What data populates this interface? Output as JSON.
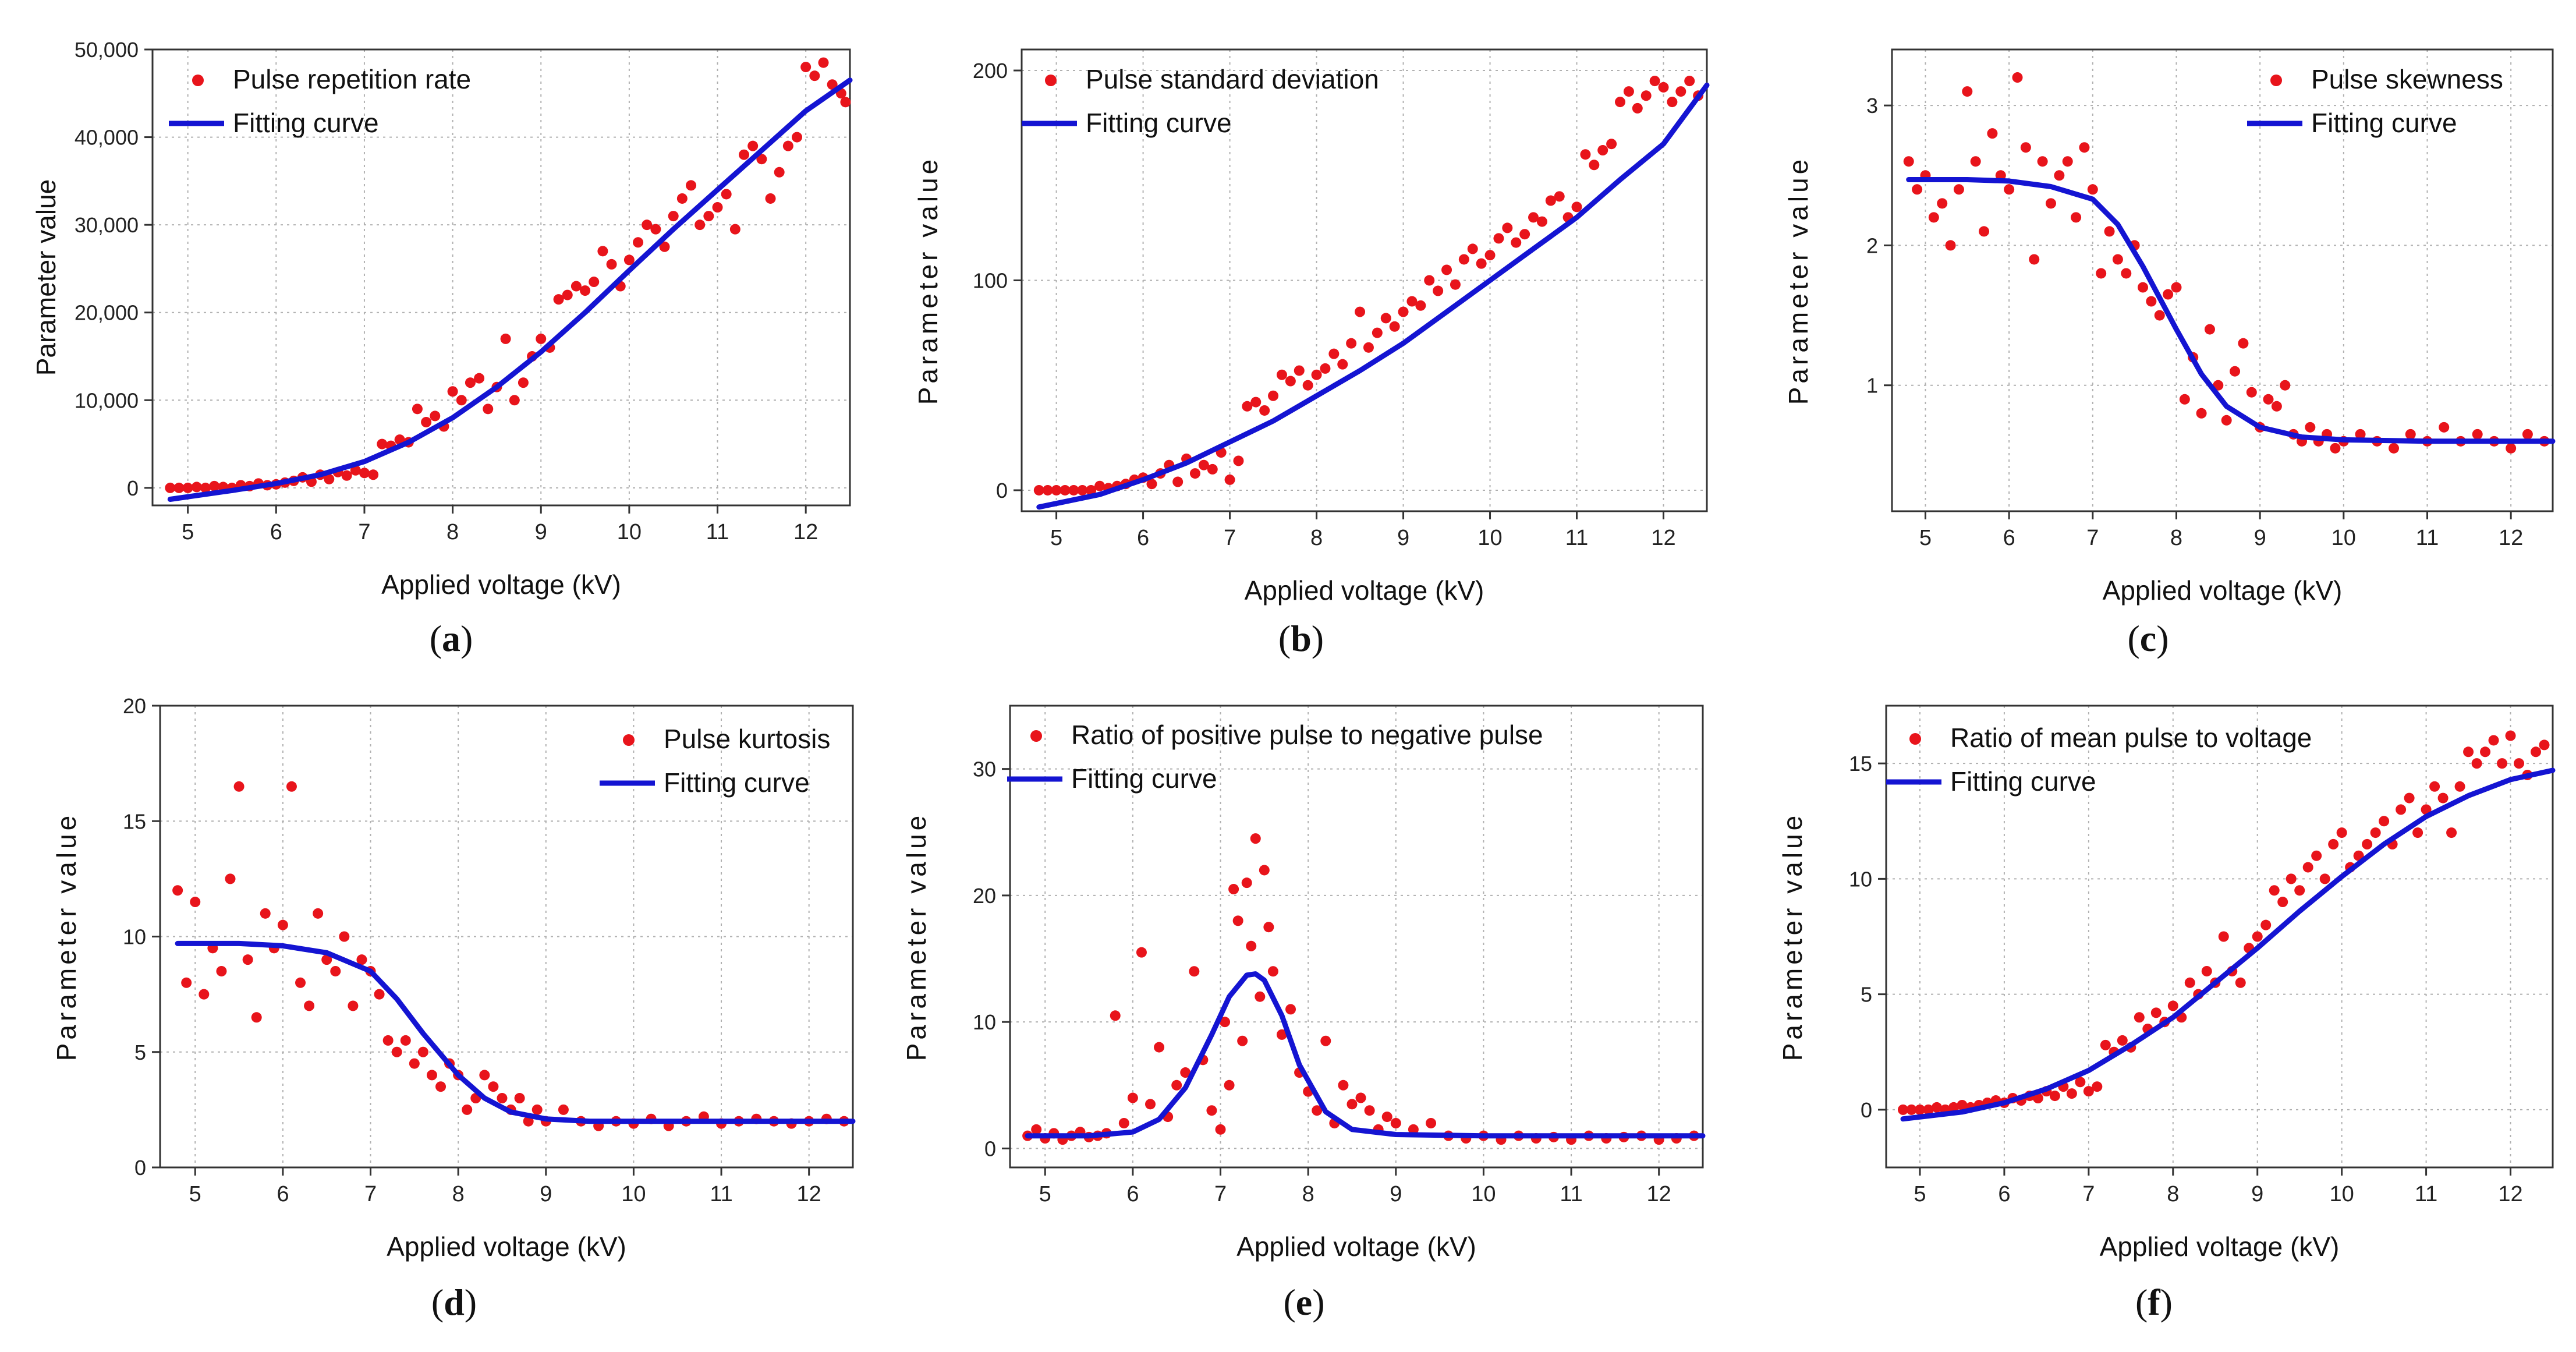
{
  "figure": {
    "shared": {
      "xlabel": "Applied voltage (kV)",
      "ylabel": "Parameter value",
      "fit_label": "Fitting curve",
      "x_ticks": [
        5,
        6,
        7,
        8,
        9,
        10,
        11,
        12
      ],
      "xlim": [
        4.6,
        12.5
      ],
      "point_color": "#e8141b",
      "curve_color": "#1414d2",
      "grid": "dotted"
    },
    "subplots": [
      {
        "label": "a",
        "legend_pos": "top-left"
      },
      {
        "label": "b",
        "legend_pos": "top-left"
      },
      {
        "label": "c",
        "legend_pos": "top-right"
      },
      {
        "label": "d",
        "legend_pos": "top-right"
      },
      {
        "label": "e",
        "legend_pos": "top-left"
      },
      {
        "label": "f",
        "legend_pos": "top-left"
      }
    ]
  },
  "chart_data": [
    {
      "panel": "a",
      "type": "scatter",
      "title": "",
      "xlabel": "Applied voltage (kV)",
      "ylabel": "Parameter value",
      "series_name": "Pulse repetition rate",
      "fit_name": "Fitting curve",
      "ylim": [
        -2000,
        50000
      ],
      "y_ticks": [
        0,
        10000,
        20000,
        30000,
        40000,
        50000
      ],
      "y_tick_labels": [
        "0",
        "10,000",
        "20,000",
        "30,000",
        "40,000",
        "50,000"
      ],
      "fit": {
        "x": [
          4.8,
          5.5,
          6,
          6.5,
          7,
          7.5,
          8,
          8.5,
          9,
          9.5,
          10,
          10.5,
          11,
          11.5,
          12,
          12.5
        ],
        "y": [
          -1300,
          -300,
          500,
          1500,
          3000,
          5200,
          8000,
          11500,
          15500,
          20000,
          24800,
          29500,
          34000,
          38500,
          43000,
          46500
        ]
      },
      "x": [
        4.8,
        4.9,
        5.0,
        5.1,
        5.2,
        5.3,
        5.4,
        5.5,
        5.6,
        5.7,
        5.8,
        5.9,
        6.0,
        6.1,
        6.2,
        6.3,
        6.4,
        6.5,
        6.6,
        6.7,
        6.8,
        6.9,
        7.0,
        7.1,
        7.2,
        7.3,
        7.4,
        7.5,
        7.6,
        7.7,
        7.8,
        7.9,
        8.0,
        8.1,
        8.2,
        8.3,
        8.4,
        8.5,
        8.6,
        8.7,
        8.8,
        8.9,
        9.0,
        9.1,
        9.2,
        9.3,
        9.4,
        9.5,
        9.6,
        9.7,
        9.8,
        9.9,
        10.0,
        10.1,
        10.2,
        10.3,
        10.4,
        10.5,
        10.6,
        10.7,
        10.8,
        10.9,
        11.0,
        11.1,
        11.2,
        11.3,
        11.4,
        11.5,
        11.6,
        11.7,
        11.8,
        11.9,
        12.0,
        12.1,
        12.2,
        12.3,
        12.4,
        12.45
      ],
      "y": [
        0,
        0,
        0,
        100,
        0,
        200,
        100,
        0,
        300,
        200,
        500,
        300,
        400,
        600,
        800,
        1200,
        700,
        1500,
        1000,
        1800,
        1400,
        2000,
        1700,
        1500,
        5000,
        4800,
        5500,
        5200,
        9000,
        7500,
        8200,
        7000,
        11000,
        10000,
        12000,
        12500,
        9000,
        11500,
        17000,
        10000,
        12000,
        15000,
        17000,
        16000,
        21500,
        22000,
        23000,
        22500,
        23500,
        27000,
        25500,
        23000,
        26000,
        28000,
        30000,
        29500,
        27500,
        31000,
        33000,
        34500,
        30000,
        31000,
        32000,
        33500,
        29500,
        38000,
        39000,
        37500,
        33000,
        36000,
        39000,
        40000,
        48000,
        47000,
        48500,
        46000,
        45000,
        44000
      ]
    },
    {
      "panel": "b",
      "type": "scatter",
      "title": "",
      "xlabel": "Applied voltage (kV)",
      "ylabel": "Parameter value",
      "series_name": "Pulse standard deviation",
      "fit_name": "Fitting curve",
      "ylim": [
        -10,
        210
      ],
      "y_ticks": [
        0,
        100,
        200
      ],
      "y_tick_labels": [
        "0",
        "100",
        "200"
      ],
      "fit": {
        "x": [
          4.8,
          5.5,
          6,
          6.5,
          7,
          7.5,
          8,
          8.5,
          9,
          9.5,
          10,
          10.5,
          11,
          11.5,
          12,
          12.5
        ],
        "y": [
          -8,
          -2,
          5,
          13,
          23,
          33,
          45,
          57,
          70,
          85,
          100,
          115,
          130,
          148,
          165,
          193
        ]
      },
      "x": [
        4.8,
        4.9,
        5.0,
        5.1,
        5.2,
        5.3,
        5.4,
        5.5,
        5.6,
        5.7,
        5.8,
        5.9,
        6.0,
        6.1,
        6.2,
        6.3,
        6.4,
        6.5,
        6.6,
        6.7,
        6.8,
        6.9,
        7.0,
        7.1,
        7.2,
        7.3,
        7.4,
        7.5,
        7.6,
        7.7,
        7.8,
        7.9,
        8.0,
        8.1,
        8.2,
        8.3,
        8.4,
        8.5,
        8.6,
        8.7,
        8.8,
        8.9,
        9.0,
        9.1,
        9.2,
        9.3,
        9.4,
        9.5,
        9.6,
        9.7,
        9.8,
        9.9,
        10.0,
        10.1,
        10.2,
        10.3,
        10.4,
        10.5,
        10.6,
        10.7,
        10.8,
        10.9,
        11.0,
        11.1,
        11.2,
        11.3,
        11.4,
        11.5,
        11.6,
        11.7,
        11.8,
        11.9,
        12.0,
        12.1,
        12.2,
        12.3,
        12.4
      ],
      "y": [
        0,
        0,
        0,
        0,
        0,
        0,
        0,
        2,
        1,
        2,
        3,
        5,
        6,
        3,
        8,
        12,
        4,
        15,
        8,
        12,
        10,
        18,
        5,
        14,
        40,
        42,
        38,
        45,
        55,
        52,
        57,
        50,
        55,
        58,
        65,
        60,
        70,
        85,
        68,
        75,
        82,
        78,
        85,
        90,
        88,
        100,
        95,
        105,
        98,
        110,
        115,
        108,
        112,
        120,
        125,
        118,
        122,
        130,
        128,
        138,
        140,
        130,
        135,
        160,
        155,
        162,
        165,
        185,
        190,
        182,
        188,
        195,
        192,
        185,
        190,
        195,
        188
      ]
    },
    {
      "panel": "c",
      "type": "scatter",
      "title": "",
      "xlabel": "Applied voltage (kV)",
      "ylabel": "Parameter value",
      "series_name": "Pulse skewness",
      "fit_name": "Fitting curve",
      "ylim": [
        0.1,
        3.4
      ],
      "y_ticks": [
        1,
        2,
        3
      ],
      "y_tick_labels": [
        "1",
        "2",
        "3"
      ],
      "fit": {
        "x": [
          4.8,
          5.5,
          6,
          6.5,
          7,
          7.3,
          7.6,
          8,
          8.3,
          8.6,
          9,
          9.5,
          10,
          11,
          12,
          12.5
        ],
        "y": [
          2.47,
          2.47,
          2.46,
          2.42,
          2.33,
          2.15,
          1.85,
          1.4,
          1.08,
          0.85,
          0.7,
          0.63,
          0.61,
          0.6,
          0.6,
          0.6
        ]
      },
      "x": [
        4.8,
        4.9,
        5.0,
        5.1,
        5.2,
        5.3,
        5.4,
        5.5,
        5.6,
        5.7,
        5.8,
        5.9,
        6.0,
        6.1,
        6.2,
        6.3,
        6.4,
        6.5,
        6.6,
        6.7,
        6.8,
        6.9,
        7.0,
        7.1,
        7.2,
        7.3,
        7.4,
        7.5,
        7.6,
        7.7,
        7.8,
        7.9,
        8.0,
        8.1,
        8.2,
        8.3,
        8.4,
        8.5,
        8.6,
        8.7,
        8.8,
        8.9,
        9.0,
        9.1,
        9.2,
        9.3,
        9.4,
        9.5,
        9.6,
        9.7,
        9.8,
        9.9,
        10.0,
        10.2,
        10.4,
        10.6,
        10.8,
        11.0,
        11.2,
        11.4,
        11.6,
        11.8,
        12.0,
        12.2,
        12.4
      ],
      "y": [
        2.6,
        2.4,
        2.5,
        2.2,
        2.3,
        2.0,
        2.4,
        3.1,
        2.6,
        2.1,
        2.8,
        2.5,
        2.4,
        3.2,
        2.7,
        1.9,
        2.6,
        2.3,
        2.5,
        2.6,
        2.2,
        2.7,
        2.4,
        1.8,
        2.1,
        1.9,
        1.8,
        2.0,
        1.7,
        1.6,
        1.5,
        1.65,
        1.7,
        0.9,
        1.2,
        0.8,
        1.4,
        1.0,
        0.75,
        1.1,
        1.3,
        0.95,
        0.7,
        0.9,
        0.85,
        1.0,
        0.65,
        0.6,
        0.7,
        0.6,
        0.65,
        0.55,
        0.6,
        0.65,
        0.6,
        0.55,
        0.65,
        0.6,
        0.7,
        0.6,
        0.65,
        0.6,
        0.55,
        0.65,
        0.6
      ]
    },
    {
      "panel": "d",
      "type": "scatter",
      "title": "",
      "xlabel": "Applied voltage (kV)",
      "ylabel": "Parameter value",
      "series_name": "Pulse kurtosis",
      "fit_name": "Fitting curve",
      "ylim": [
        0,
        20
      ],
      "y_ticks": [
        0,
        5,
        10,
        15,
        20
      ],
      "y_tick_labels": [
        "0",
        "5",
        "10",
        "15",
        "20"
      ],
      "fit": {
        "x": [
          4.8,
          5.5,
          6,
          6.5,
          7,
          7.3,
          7.6,
          8,
          8.3,
          8.6,
          9,
          9.5,
          10,
          11,
          12,
          12.5
        ],
        "y": [
          9.7,
          9.7,
          9.6,
          9.3,
          8.5,
          7.3,
          5.8,
          4.0,
          3.0,
          2.4,
          2.1,
          2.0,
          2.0,
          2.0,
          2.0,
          2.0
        ]
      },
      "x": [
        4.8,
        4.9,
        5.0,
        5.1,
        5.2,
        5.3,
        5.4,
        5.5,
        5.6,
        5.7,
        5.8,
        5.9,
        6.0,
        6.1,
        6.2,
        6.3,
        6.4,
        6.5,
        6.6,
        6.7,
        6.8,
        6.9,
        7.0,
        7.1,
        7.2,
        7.3,
        7.4,
        7.5,
        7.6,
        7.7,
        7.8,
        7.9,
        8.0,
        8.1,
        8.2,
        8.3,
        8.4,
        8.5,
        8.6,
        8.7,
        8.8,
        8.9,
        9.0,
        9.2,
        9.4,
        9.6,
        9.8,
        10.0,
        10.2,
        10.4,
        10.6,
        10.8,
        11.0,
        11.2,
        11.4,
        11.6,
        11.8,
        12.0,
        12.2,
        12.4
      ],
      "y": [
        12.0,
        8.0,
        11.5,
        7.5,
        9.5,
        8.5,
        12.5,
        16.5,
        9.0,
        6.5,
        11.0,
        9.5,
        10.5,
        16.5,
        8.0,
        7.0,
        11.0,
        9.0,
        8.5,
        10.0,
        7.0,
        9.0,
        8.5,
        7.5,
        5.5,
        5.0,
        5.5,
        4.5,
        5.0,
        4.0,
        3.5,
        4.5,
        4.0,
        2.5,
        3.0,
        4.0,
        3.5,
        3.0,
        2.5,
        3.0,
        2.0,
        2.5,
        2.0,
        2.5,
        2.0,
        1.8,
        2.0,
        1.9,
        2.1,
        1.8,
        2.0,
        2.2,
        1.9,
        2.0,
        2.1,
        2.0,
        1.9,
        2.0,
        2.1,
        2.0
      ]
    },
    {
      "panel": "e",
      "type": "scatter",
      "title": "",
      "xlabel": "Applied voltage (kV)",
      "ylabel": "Parameter value",
      "series_name": "Ratio of positive pulse to negative pulse",
      "fit_name": "Fitting curve",
      "ylim": [
        -1.5,
        35
      ],
      "y_ticks": [
        0,
        10,
        20,
        30
      ],
      "y_tick_labels": [
        "0",
        "10",
        "20",
        "30"
      ],
      "fit": {
        "x": [
          4.8,
          5.5,
          6,
          6.3,
          6.6,
          6.9,
          7.1,
          7.3,
          7.4,
          7.5,
          7.7,
          7.9,
          8.2,
          8.5,
          9,
          10,
          11,
          12,
          12.5
        ],
        "y": [
          1.0,
          1.0,
          1.3,
          2.3,
          4.8,
          9.0,
          12.0,
          13.7,
          13.8,
          13.3,
          10.5,
          6.6,
          2.9,
          1.5,
          1.1,
          1.0,
          1.0,
          1.0,
          1.0
        ]
      },
      "x": [
        4.8,
        4.9,
        5.0,
        5.1,
        5.2,
        5.3,
        5.4,
        5.5,
        5.6,
        5.7,
        5.8,
        5.9,
        6.0,
        6.1,
        6.2,
        6.3,
        6.4,
        6.5,
        6.6,
        6.7,
        6.8,
        6.9,
        7.0,
        7.05,
        7.1,
        7.15,
        7.2,
        7.25,
        7.3,
        7.35,
        7.4,
        7.45,
        7.5,
        7.55,
        7.6,
        7.7,
        7.8,
        7.9,
        8.0,
        8.1,
        8.2,
        8.3,
        8.4,
        8.5,
        8.6,
        8.7,
        8.8,
        8.9,
        9.0,
        9.2,
        9.4,
        9.6,
        9.8,
        10.0,
        10.2,
        10.4,
        10.6,
        10.8,
        11.0,
        11.2,
        11.4,
        11.6,
        11.8,
        12.0,
        12.2,
        12.4
      ],
      "y": [
        1.0,
        1.5,
        0.8,
        1.2,
        0.7,
        1.0,
        1.3,
        0.9,
        1.0,
        1.2,
        10.5,
        2.0,
        4.0,
        15.5,
        3.5,
        8.0,
        2.5,
        5.0,
        6.0,
        14.0,
        7.0,
        3.0,
        1.5,
        10.0,
        5.0,
        20.5,
        18.0,
        8.5,
        21.0,
        16.0,
        24.5,
        12.0,
        22.0,
        17.5,
        14.0,
        9.0,
        11.0,
        6.0,
        4.5,
        3.0,
        8.5,
        2.0,
        5.0,
        3.5,
        4.0,
        3.0,
        1.5,
        2.5,
        2.0,
        1.5,
        2.0,
        1.0,
        0.8,
        1.0,
        0.7,
        1.0,
        0.8,
        0.9,
        0.7,
        1.0,
        0.8,
        0.9,
        1.0,
        0.7,
        0.8,
        1.0
      ]
    },
    {
      "panel": "f",
      "type": "scatter",
      "title": "",
      "xlabel": "Applied voltage (kV)",
      "ylabel": "Parameter value",
      "series_name": "Ratio of mean pulse to voltage",
      "fit_name": "Fitting curve",
      "ylim": [
        -2.5,
        17.5
      ],
      "y_ticks": [
        0,
        5,
        10,
        15
      ],
      "y_tick_labels": [
        "0",
        "5",
        "10",
        "15"
      ],
      "fit": {
        "x": [
          4.8,
          5.5,
          6,
          6.5,
          7,
          7.5,
          8,
          8.5,
          9,
          9.5,
          10,
          10.5,
          11,
          11.5,
          12,
          12.5
        ],
        "y": [
          -0.4,
          -0.1,
          0.3,
          0.9,
          1.7,
          2.8,
          4.0,
          5.5,
          7.0,
          8.6,
          10.1,
          11.5,
          12.7,
          13.6,
          14.3,
          14.7
        ]
      },
      "x": [
        4.8,
        4.9,
        5.0,
        5.1,
        5.2,
        5.3,
        5.4,
        5.5,
        5.6,
        5.7,
        5.8,
        5.9,
        6.0,
        6.1,
        6.2,
        6.3,
        6.4,
        6.5,
        6.6,
        6.7,
        6.8,
        6.9,
        7.0,
        7.1,
        7.2,
        7.3,
        7.4,
        7.5,
        7.6,
        7.7,
        7.8,
        7.9,
        8.0,
        8.1,
        8.2,
        8.3,
        8.4,
        8.5,
        8.6,
        8.7,
        8.8,
        8.9,
        9.0,
        9.1,
        9.2,
        9.3,
        9.4,
        9.5,
        9.6,
        9.7,
        9.8,
        9.9,
        10.0,
        10.1,
        10.2,
        10.3,
        10.4,
        10.5,
        10.6,
        10.7,
        10.8,
        10.9,
        11.0,
        11.1,
        11.2,
        11.3,
        11.4,
        11.5,
        11.6,
        11.7,
        11.8,
        11.9,
        12.0,
        12.1,
        12.2,
        12.3,
        12.4
      ],
      "y": [
        0,
        0,
        0,
        0,
        0.1,
        0,
        0.1,
        0.2,
        0.1,
        0.2,
        0.3,
        0.4,
        0.3,
        0.5,
        0.4,
        0.6,
        0.5,
        0.8,
        0.6,
        1.0,
        0.7,
        1.2,
        0.8,
        1.0,
        2.8,
        2.5,
        3.0,
        2.7,
        4.0,
        3.5,
        4.2,
        3.8,
        4.5,
        4.0,
        5.5,
        5.0,
        6.0,
        5.5,
        7.5,
        6.0,
        5.5,
        7.0,
        7.5,
        8.0,
        9.5,
        9.0,
        10.0,
        9.5,
        10.5,
        11.0,
        10.0,
        11.5,
        12.0,
        10.5,
        11.0,
        11.5,
        12.0,
        12.5,
        11.5,
        13.0,
        13.5,
        12.0,
        13.0,
        14.0,
        13.5,
        12.0,
        14.0,
        15.5,
        15.0,
        15.5,
        16.0,
        15.0,
        16.2,
        15.0,
        14.5,
        15.5,
        15.8
      ]
    }
  ]
}
